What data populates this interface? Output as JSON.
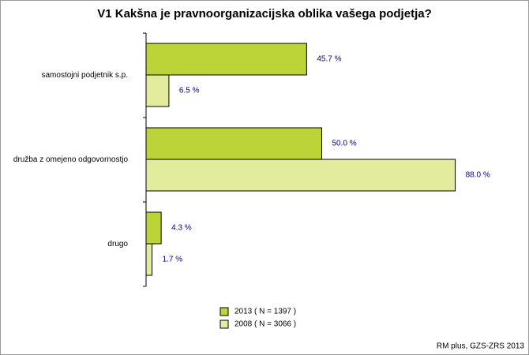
{
  "chart_data": {
    "type": "bar",
    "orientation": "horizontal",
    "title": "V1 Kakšna je pravnoorganizacijska oblika vašega podjetja?",
    "categories": [
      "samostojni podjetnik s.p.",
      "družba z omejeno odgovornostjo",
      "drugo"
    ],
    "series": [
      {
        "name": "2013 ( N = 1397 )",
        "color": "#bcd437",
        "values": [
          45.7,
          50.0,
          4.3
        ],
        "value_labels": [
          "45.7 %",
          "50.0 %",
          "4.3 %"
        ]
      },
      {
        "name": "2008 ( N = 3066 )",
        "color": "#e3ec9c",
        "values": [
          6.5,
          88.0,
          1.7
        ],
        "value_labels": [
          "6.5 %",
          "88.0 %",
          "1.7 %"
        ]
      }
    ],
    "xlim": [
      0,
      100
    ],
    "footer": "RM plus, GZS-ZRS 2013"
  }
}
